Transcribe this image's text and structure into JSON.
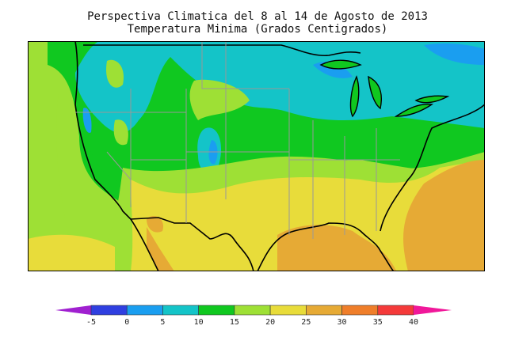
{
  "title": "Perspectiva Climatica del 8 al 14 de Agosto de 2013",
  "subtitle": "Temperatura Minima (Grados Centigrados)",
  "legend": {
    "ticks": [
      "-5",
      "0",
      "5",
      "10",
      "15",
      "20",
      "25",
      "30",
      "35",
      "40"
    ],
    "colors": [
      "#2f3fe0",
      "#1a9ef0",
      "#14c4c8",
      "#10c820",
      "#9ee035",
      "#e8dc3a",
      "#e6aa35",
      "#ef7e2a",
      "#f43a3a"
    ],
    "under_color": "#a020d0",
    "over_color": "#f0189a"
  },
  "colors": {
    "ocean_west": "#9ee035",
    "green": "#10c820",
    "cyan": "#14c4c8",
    "blue": "#1a9ef0",
    "yellow": "#e8dc3a",
    "orange": "#e6aa35"
  }
}
